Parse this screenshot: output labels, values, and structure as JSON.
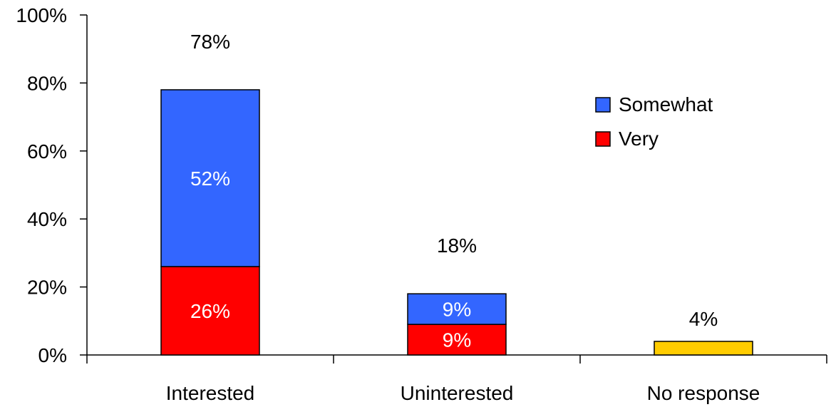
{
  "chart_data": {
    "type": "bar",
    "stacked": true,
    "categories": [
      "Interested",
      "Uninterested",
      "No response"
    ],
    "series": [
      {
        "name": "Very",
        "color": "#ff0000",
        "values": [
          26,
          9,
          null
        ],
        "labels": [
          "26%",
          "9%",
          ""
        ]
      },
      {
        "name": "Somewhat",
        "color": "#3366ff",
        "values": [
          52,
          9,
          null
        ],
        "labels": [
          "52%",
          "9%",
          ""
        ]
      },
      {
        "name": "",
        "color": "#ffcc00",
        "values": [
          null,
          null,
          4
        ],
        "labels": [
          "",
          "",
          ""
        ]
      }
    ],
    "totals": [
      "78%",
      "18%",
      "4%"
    ],
    "total_values": [
      78,
      18,
      4
    ],
    "yticks": [
      "0%",
      "20%",
      "40%",
      "60%",
      "80%",
      "100%"
    ],
    "ylim": [
      0,
      100
    ],
    "legend": {
      "position": "top-right",
      "items": [
        {
          "name": "Somewhat",
          "color": "#3366ff"
        },
        {
          "name": "Very",
          "color": "#ff0000"
        }
      ]
    },
    "title": "",
    "xlabel": "",
    "ylabel": "",
    "grid": false
  }
}
